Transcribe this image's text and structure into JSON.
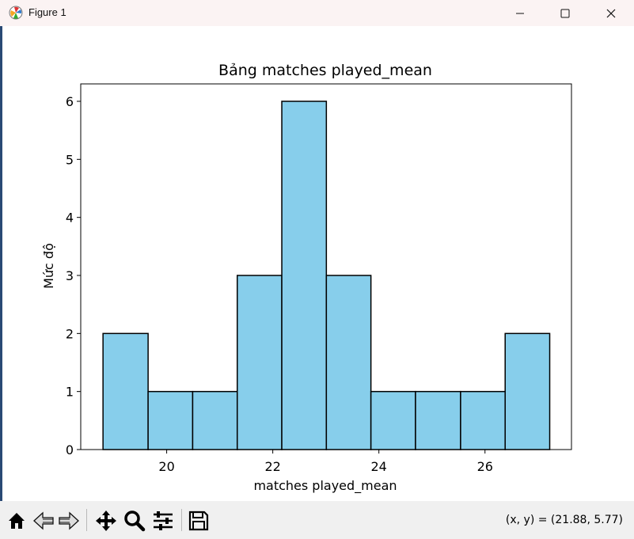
{
  "window": {
    "title": "Figure 1",
    "icon": "matplotlib-figure-icon",
    "controls": [
      "minimize-icon",
      "maximize-icon",
      "close-icon"
    ]
  },
  "colors": {
    "bar_fill": "#87ceeb",
    "bar_edge": "#000000",
    "titlebar_bg": "#fbf3f3",
    "toolbar_bg": "#f0f0f0"
  },
  "chart_data": {
    "type": "bar",
    "title": "Bảng matches played_mean",
    "xlabel": "matches played_mean",
    "ylabel": "Mức độ",
    "bins": [
      {
        "x0": 18.8,
        "x1": 19.65,
        "count": 2
      },
      {
        "x0": 19.65,
        "x1": 20.49,
        "count": 1
      },
      {
        "x0": 20.49,
        "x1": 21.33,
        "count": 1
      },
      {
        "x0": 21.33,
        "x1": 22.17,
        "count": 3
      },
      {
        "x0": 22.17,
        "x1": 23.01,
        "count": 6
      },
      {
        "x0": 23.01,
        "x1": 23.85,
        "count": 3
      },
      {
        "x0": 23.85,
        "x1": 24.69,
        "count": 1
      },
      {
        "x0": 24.69,
        "x1": 25.54,
        "count": 1
      },
      {
        "x0": 25.54,
        "x1": 26.38,
        "count": 1
      },
      {
        "x0": 26.38,
        "x1": 27.22,
        "count": 2
      }
    ],
    "xlim": [
      18.38,
      27.63
    ],
    "ylim": [
      0,
      6.3
    ],
    "xticks": [
      20,
      22,
      24,
      26
    ],
    "yticks": [
      0,
      1,
      2,
      3,
      4,
      5,
      6
    ],
    "grid": false
  },
  "toolbar": {
    "buttons": [
      "home-icon",
      "back-icon",
      "forward-icon",
      "pan-icon",
      "zoom-icon",
      "configure-subplots-icon",
      "save-icon"
    ],
    "coords_text": "(x, y) = (21.88, 5.77)"
  }
}
